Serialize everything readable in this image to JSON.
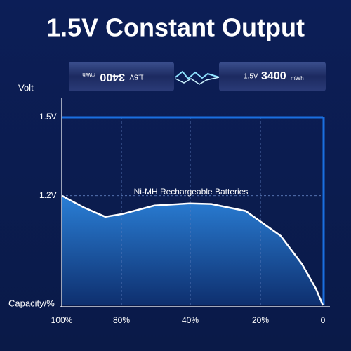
{
  "chart_data": {
    "type": "area",
    "title": "1.5V Constant Output",
    "battery": {
      "voltage": "1.5V",
      "capacity": "3400",
      "unit": "mWh"
    },
    "ylabel": "Volt",
    "xlabel": "Capacity/%",
    "annotation": "Ni-MH Rechargeable Batteries",
    "xlim": [
      100,
      0
    ],
    "xticks": [
      {
        "value": 100,
        "label": "100%"
      },
      {
        "value": 80,
        "label": "80%"
      },
      {
        "value": 40,
        "label": "40%"
      },
      {
        "value": 20,
        "label": "20%"
      },
      0
    ],
    "ylim": [
      0.78,
      1.5
    ],
    "yticks": [
      {
        "value": 1.5,
        "label": "1.5V"
      },
      {
        "value": 1.2,
        "label": "1.2V"
      }
    ],
    "series": [
      {
        "color": "#1a6fe0",
        "x": [
          100,
          0
        ],
        "values": [
          1.5,
          1.5
        ]
      },
      {
        "name": "Ni-MH Rechargeable Batteries",
        "color": "#ffffff",
        "x": [
          100,
          92.5,
          85.4,
          79.2,
          60.8,
          40.4,
          34,
          24.2,
          13.5,
          6.7,
          2.2,
          0
        ],
        "values": [
          1.2,
          1.154,
          1.119,
          1.13,
          1.162,
          1.17,
          1.168,
          1.141,
          1.046,
          0.938,
          0.843,
          0.78
        ]
      }
    ],
    "grid": true
  }
}
